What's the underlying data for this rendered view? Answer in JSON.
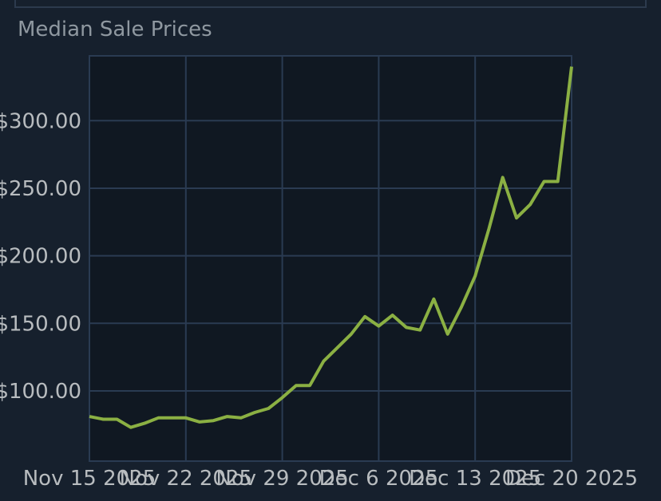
{
  "chart_data": {
    "type": "line",
    "title": "Median Sale Prices",
    "xlabel": "",
    "ylabel": "",
    "x_tick_labels": [
      "Nov 15 2025",
      "Nov 22 2025",
      "Nov 29 2025",
      "Dec 6 2025",
      "Dec 13 2025",
      "Dec 20 2025"
    ],
    "y_tick_labels": [
      "$100.00",
      "$150.00",
      "$200.00",
      "$250.00",
      "$300.00"
    ],
    "ylim": [
      48,
      348
    ],
    "xlim": [
      "2025-11-15",
      "2025-12-20"
    ],
    "grid": true,
    "legend": "none",
    "colors": {
      "line": "#8bb043",
      "plot_bg": "#101822",
      "grid": "#2a3b52",
      "text": "#b8bcbf",
      "title": "#8f98a0"
    },
    "series": [
      {
        "x": [
          "2025-11-15",
          "2025-11-16",
          "2025-11-17",
          "2025-11-18",
          "2025-11-19",
          "2025-11-20",
          "2025-11-21",
          "2025-11-22",
          "2025-11-23",
          "2025-11-24",
          "2025-11-25",
          "2025-11-26",
          "2025-11-27",
          "2025-11-28",
          "2025-11-29",
          "2025-11-30",
          "2025-12-01",
          "2025-12-02",
          "2025-12-03",
          "2025-12-04",
          "2025-12-05",
          "2025-12-06",
          "2025-12-07",
          "2025-12-08",
          "2025-12-09",
          "2025-12-10",
          "2025-12-11",
          "2025-12-12",
          "2025-12-13",
          "2025-12-14",
          "2025-12-15",
          "2025-12-16",
          "2025-12-17",
          "2025-12-18",
          "2025-12-19",
          "2025-12-20"
        ],
        "y": [
          81,
          79,
          79,
          73,
          76,
          80,
          80,
          80,
          77,
          78,
          81,
          80,
          84,
          87,
          95,
          104,
          104,
          122,
          132,
          142,
          155,
          148,
          156,
          147,
          145,
          168,
          142,
          162,
          185,
          220,
          258,
          228,
          238,
          255,
          255,
          340
        ]
      }
    ]
  }
}
